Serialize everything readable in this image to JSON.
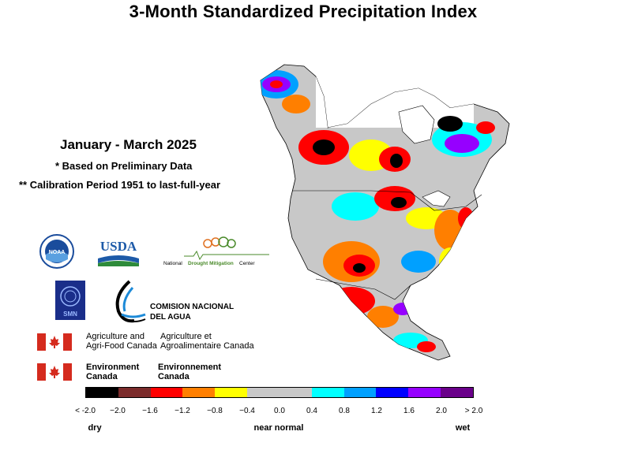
{
  "title": "3-Month Standardized Precipitation Index",
  "period": "January - March 2025",
  "note_preliminary": "* Based on Preliminary Data",
  "note_calibration": "** Calibration Period 1951 to last-full-year",
  "logos": {
    "noaa": "NOAA",
    "usda": "USDA",
    "ndmc_prefix": "National",
    "ndmc_name": "Drought Mitigation",
    "ndmc_suffix": "Center",
    "smn": "SMN",
    "cna_line1": "COMISION NACIONAL",
    "cna_line2": "DEL AGUA",
    "agri_en_1": "Agriculture and",
    "agri_en_2": "Agri-Food Canada",
    "agri_fr_1": "Agriculture et",
    "agri_fr_2": "Agroalimentaire Canada",
    "env_en_1": "Environment",
    "env_en_2": "Canada",
    "env_fr_1": "Environnement",
    "env_fr_2": "Canada"
  },
  "legend": {
    "colors": [
      "#000000",
      "#7b2b2b",
      "#ff0000",
      "#ff7f00",
      "#ffff00",
      "#c8c8c8",
      "#c8c8c8",
      "#00ffff",
      "#00a0ff",
      "#0000ff",
      "#9600ff",
      "#6a008a"
    ],
    "ticks": [
      "< -2.0",
      "−2.0",
      "−1.6",
      "−1.2",
      "−0.8",
      "−0.4",
      "0.0",
      "0.4",
      "0.8",
      "1.2",
      "1.6",
      "2.0",
      "> 2.0"
    ],
    "categories": [
      "dry",
      "near normal",
      "wet"
    ]
  },
  "colors": {
    "brand_blue": "#1a4c9c",
    "usda_blue": "#1d5aa8",
    "usda_green": "#2e8b3a",
    "canada_red": "#d52b1e",
    "ndmc_orange": "#e07020",
    "ndmc_green": "#4a8a2a"
  }
}
